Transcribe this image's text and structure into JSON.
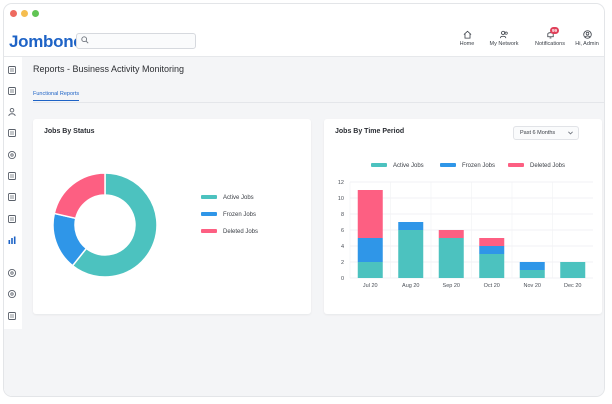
{
  "window": {
    "traffic_lights": [
      "#ee6a5f",
      "#f5bd4f",
      "#61c454"
    ]
  },
  "brand": {
    "logo": "Jombone",
    "color": "#1e63c6"
  },
  "search": {
    "placeholder": "",
    "value": ""
  },
  "nav": {
    "home": "Home",
    "network": "My Network",
    "notifications": "Notifications",
    "notifications_count": "99",
    "admin": "Hi, Admin"
  },
  "sidebar": {
    "icons": [
      "dashboard-icon",
      "document-icon",
      "user-icon",
      "briefcase-icon",
      "search-person-icon",
      "report-icon",
      "calendar-icon",
      "clipboard-icon",
      "bar-chart-icon",
      "settings-icon",
      "help-icon",
      "logout-icon"
    ],
    "active": "bar-chart-icon"
  },
  "page": {
    "title": "Reports - Business Activity Monitoring"
  },
  "tabs": [
    {
      "label": "Functional Reports",
      "active": true
    }
  ],
  "colors": {
    "active": "#4cc2bf",
    "frozen": "#2f96e8",
    "deleted": "#fd5f82"
  },
  "jobs_by_status": {
    "title": "Jobs By Status",
    "legend": [
      "Active Jobs",
      "Frozen Jobs",
      "Deleted Jobs"
    ]
  },
  "jobs_by_time": {
    "title": "Jobs By Time Period",
    "filter": "Past 6 Months",
    "legend": [
      "Active Jobs",
      "Frozen Jobs",
      "Deleted Jobs"
    ]
  },
  "chart_data": [
    {
      "type": "pie",
      "title": "Jobs By Status",
      "labels": [
        "Active Jobs",
        "Frozen Jobs",
        "Deleted Jobs"
      ],
      "values": [
        17,
        5,
        6
      ],
      "donut": true
    },
    {
      "type": "bar",
      "stacked": true,
      "title": "Jobs By Time Period",
      "categories": [
        "Jul 20",
        "Aug 20",
        "Sep 20",
        "Oct 20",
        "Nov 20",
        "Dec 20"
      ],
      "series": [
        {
          "name": "Active Jobs",
          "values": [
            2,
            6,
            5,
            3,
            1,
            2
          ]
        },
        {
          "name": "Frozen Jobs",
          "values": [
            3,
            1,
            0,
            1,
            1,
            0
          ]
        },
        {
          "name": "Deleted Jobs",
          "values": [
            6,
            0,
            1,
            1,
            0,
            0
          ]
        }
      ],
      "ylim": [
        0,
        12
      ],
      "yticks": [
        0,
        2,
        4,
        6,
        8,
        10,
        12
      ],
      "grid": true,
      "legend_position": "top"
    }
  ]
}
